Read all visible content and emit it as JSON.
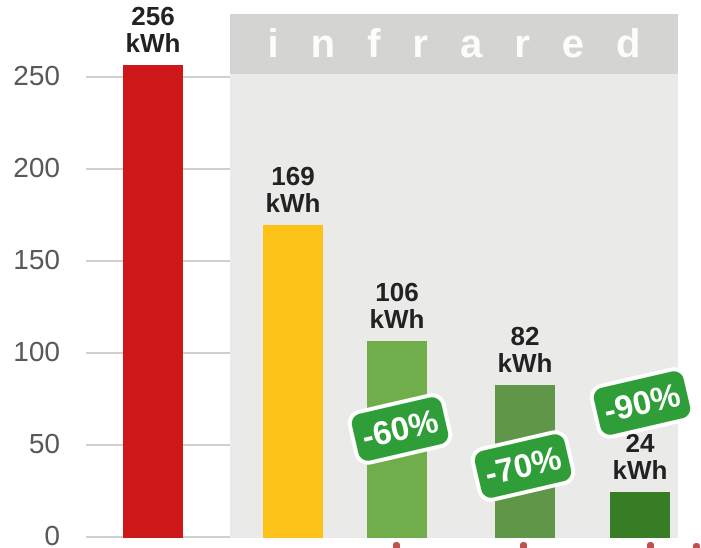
{
  "chart_data": {
    "type": "bar",
    "title": "",
    "region_label": "infrared",
    "unit": "kWh",
    "ylim": [
      0,
      275
    ],
    "yticks": [
      0,
      50,
      100,
      150,
      200,
      250
    ],
    "bars": [
      {
        "value": 256,
        "color": "#cd1719",
        "in_infrared_region": false
      },
      {
        "value": 169,
        "color": "#fcc217",
        "in_infrared_region": true
      },
      {
        "value": 106,
        "color": "#6fae4a",
        "in_infrared_region": true
      },
      {
        "value": 82,
        "color": "#5f9647",
        "in_infrared_region": true
      },
      {
        "value": 24,
        "color": "#367d26",
        "in_infrared_region": true
      }
    ],
    "badges": [
      {
        "label": "-60%",
        "bar_value": 106
      },
      {
        "label": "-70%",
        "bar_value": 82
      },
      {
        "label": "-90%",
        "bar_value": 24
      }
    ],
    "badge_color": "#2f9e38",
    "layout_hints": {
      "grid": true,
      "value_labels": "two lines above each bar",
      "legend": "none",
      "x_axis_labels": "cropped out of frame"
    }
  }
}
